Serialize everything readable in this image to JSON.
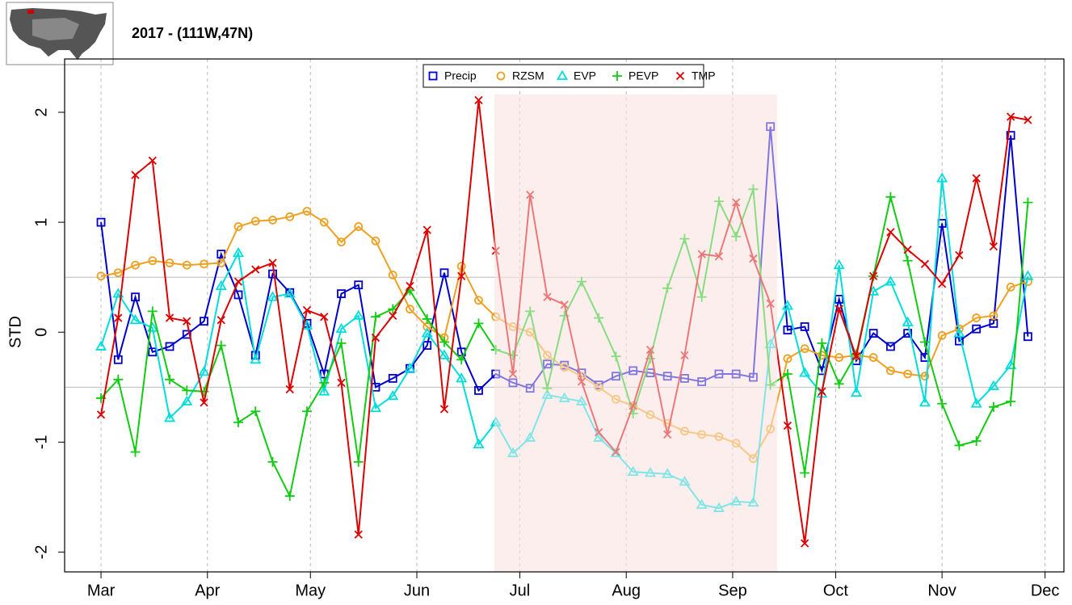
{
  "chart_data": {
    "type": "line",
    "title": "2017  - (111W,47N)",
    "ylabel": "STD",
    "x": [
      0,
      5,
      10,
      15,
      20,
      25,
      30,
      35,
      40,
      45,
      50,
      55,
      60,
      65,
      70,
      75,
      80,
      85,
      90,
      95,
      100,
      105,
      110,
      115,
      120,
      125,
      130,
      135,
      140,
      145,
      150,
      155,
      160,
      165,
      170,
      175,
      180,
      185,
      190,
      195,
      200,
      205,
      210,
      215,
      220,
      225,
      230,
      235,
      240,
      245,
      250,
      255,
      260,
      265,
      270
    ],
    "xlim": [
      -10.6,
      280.5
    ],
    "xticks": [
      {
        "value": 0,
        "label": "Mar"
      },
      {
        "value": 31,
        "label": "Apr"
      },
      {
        "value": 61,
        "label": "May"
      },
      {
        "value": 92,
        "label": "Jun"
      },
      {
        "value": 122,
        "label": "Jul"
      },
      {
        "value": 153,
        "label": "Aug"
      },
      {
        "value": 184,
        "label": "Sep"
      },
      {
        "value": 214,
        "label": "Oct"
      },
      {
        "value": 245,
        "label": "Nov"
      },
      {
        "value": 275,
        "label": "Dec"
      }
    ],
    "ylim": [
      -2.18,
      2.485
    ],
    "yticks": [
      -2,
      -1,
      0,
      1,
      2
    ],
    "hlines": [
      0.5,
      -0.5
    ],
    "highlight": [
      114.6,
      197
    ],
    "grid": true,
    "legend": "top",
    "series": [
      {
        "name": "Precip",
        "color": "#0000cc",
        "marker": "square",
        "values": [
          1.0,
          -0.25,
          0.32,
          -0.18,
          -0.13,
          -0.02,
          0.1,
          0.71,
          0.34,
          -0.21,
          0.53,
          0.36,
          0.08,
          -0.38,
          0.35,
          0.43,
          -0.5,
          -0.42,
          -0.33,
          -0.12,
          0.54,
          -0.18,
          -0.53,
          -0.38,
          -0.46,
          -0.51,
          -0.29,
          -0.3,
          -0.37,
          -0.48,
          -0.4,
          -0.35,
          -0.37,
          -0.4,
          -0.42,
          -0.45,
          -0.38,
          -0.38,
          -0.41,
          1.87,
          0.02,
          0.05,
          -0.35,
          0.3,
          -0.26,
          -0.01,
          -0.13,
          -0.01,
          -0.23,
          0.99,
          -0.08,
          0.03,
          0.08,
          1.79,
          -0.04
        ]
      },
      {
        "name": "RZSM",
        "color": "#f0a020",
        "marker": "circle",
        "values": [
          0.51,
          0.54,
          0.61,
          0.65,
          0.63,
          0.61,
          0.62,
          0.63,
          0.96,
          1.01,
          1.02,
          1.05,
          1.1,
          1.0,
          0.82,
          0.96,
          0.83,
          0.52,
          0.21,
          0.05,
          -0.05,
          0.6,
          0.29,
          0.14,
          0.05,
          0,
          -0.21,
          -0.32,
          -0.4,
          -0.5,
          -0.61,
          -0.67,
          -0.75,
          -0.83,
          -0.9,
          -0.93,
          -0.95,
          -1.01,
          -1.15,
          -0.88,
          -0.24,
          -0.15,
          -0.21,
          -0.23,
          -0.21,
          -0.23,
          -0.35,
          -0.38,
          -0.4,
          -0.03,
          0.03,
          0.13,
          0.15,
          0.41,
          0.46
        ]
      },
      {
        "name": "EVP",
        "color": "#00dddd",
        "marker": "triangle",
        "values": [
          -0.13,
          0.35,
          0.11,
          0.04,
          -0.78,
          -0.63,
          -0.36,
          0.42,
          0.72,
          -0.25,
          0.32,
          0.35,
          0.06,
          -0.54,
          0.03,
          0.15,
          -0.69,
          -0.58,
          -0.33,
          -0.01,
          -0.21,
          -0.42,
          -1.02,
          -0.82,
          -1.1,
          -0.96,
          -0.57,
          -0.6,
          -0.63,
          -0.96,
          -1.1,
          -1.27,
          -1.28,
          -1.29,
          -1.36,
          -1.57,
          -1.6,
          -1.54,
          -1.55,
          -0.11,
          0.24,
          -0.37,
          -0.56,
          0.61,
          -0.55,
          0.37,
          0.46,
          0.09,
          -0.64,
          1.4,
          -0.01,
          -0.65,
          -0.49,
          -0.3,
          0.51
        ]
      },
      {
        "name": "PEVP",
        "color": "#11cc11",
        "marker": "plus",
        "values": [
          -0.6,
          -0.43,
          -1.09,
          0.19,
          -0.43,
          -0.53,
          -0.54,
          -0.12,
          -0.82,
          -0.72,
          -1.18,
          -1.49,
          -0.72,
          -0.46,
          -0.1,
          -1.18,
          0.14,
          0.21,
          0.38,
          0.12,
          -0.09,
          -0.25,
          0.08,
          -0.16,
          -0.21,
          0.19,
          -0.51,
          0.15,
          0.46,
          0.13,
          -0.22,
          -0.74,
          -0.24,
          0.4,
          0.85,
          0.32,
          1.19,
          0.87,
          1.3,
          -0.48,
          -0.38,
          -1.28,
          -0.1,
          -0.47,
          -0.2,
          0.51,
          1.23,
          0.65,
          -0.09,
          -0.65,
          -1.03,
          -0.99,
          -0.68,
          -0.63,
          1.18
        ]
      },
      {
        "name": "TMP",
        "color": "#dd0000",
        "marker": "cross",
        "values": [
          -0.75,
          0.13,
          1.43,
          1.56,
          0.13,
          0.1,
          -0.64,
          0.11,
          0.46,
          0.57,
          0.63,
          -0.52,
          0.2,
          0.14,
          -0.46,
          -1.84,
          -0.05,
          0.15,
          0.42,
          0.93,
          -0.7,
          0.51,
          2.11,
          0.74,
          -0.38,
          1.25,
          0.32,
          0.25,
          -0.45,
          -0.91,
          -1.09,
          -0.67,
          -0.16,
          -0.93,
          -0.21,
          0.71,
          0.69,
          1.18,
          0.67,
          0.26,
          -0.85,
          -1.92,
          -0.54,
          0.21,
          -0.22,
          0.51,
          0.91,
          0.75,
          0.62,
          0.44,
          0.7,
          1.4,
          0.78,
          1.96,
          1.93
        ]
      }
    ]
  }
}
